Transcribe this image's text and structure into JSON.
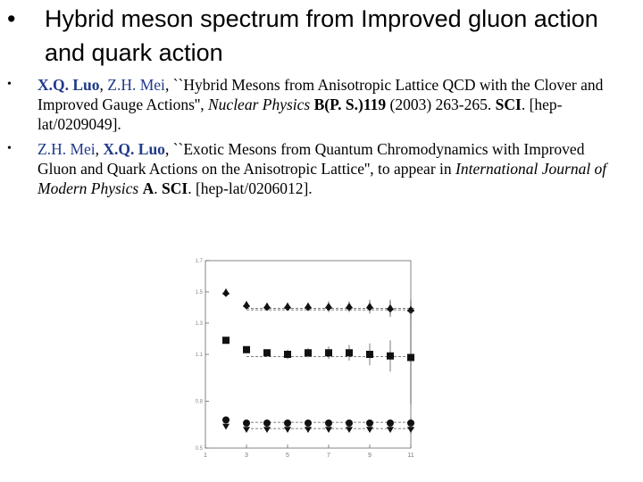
{
  "title": {
    "bullet": "•",
    "text": "Hybrid meson spectrum from Improved gluon action and quark action"
  },
  "references": [
    {
      "bullet": "•",
      "author1": "X.Q. Luo",
      "sep1": ", ",
      "author2": "Z.H. Mei",
      "text1": ", ``Hybrid Mesons from Anisotropic Lattice QCD with the Clover and Improved Gauge Actions'', ",
      "journal": "Nuclear Physics",
      "text2": " ",
      "volume": "B(P. S.)119",
      "text3": " (2003) 263-265. ",
      "sci": "SCI",
      "text4": ". [hep-lat/0209049]."
    },
    {
      "bullet": "•",
      "author1": "Z.H. Mei",
      "sep1": ", ",
      "author2": "X.Q. Luo",
      "text1": ", ``Exotic Mesons from Quantum Chromodynamics with Improved Gluon and Quark Actions on the Anisotropic Lattice'', to appear in ",
      "journal": "International Journal of Modern Physics",
      "text2": " ",
      "volume": "A",
      "text3": ". ",
      "sci": "SCI",
      "text4": ". [hep-lat/0206012]."
    }
  ],
  "chart_data": {
    "type": "scatter",
    "xlim": [
      1,
      11
    ],
    "ylim": [
      0.5,
      1.7
    ],
    "xticks": [
      "1",
      "3",
      "5",
      "7",
      "9",
      "11"
    ],
    "yticks": [
      "0.5",
      "0.8",
      "1.1",
      "1.3",
      "1.5",
      "1.7"
    ],
    "series": [
      {
        "marker": "triangle-up",
        "x": [
          2,
          3,
          4,
          5,
          6,
          7,
          8,
          9,
          10,
          11
        ],
        "y": [
          1.5,
          1.42,
          1.41,
          1.41,
          1.41,
          1.41,
          1.41,
          1.41,
          1.4,
          1.39
        ],
        "err": [
          0.02,
          0.02,
          0.02,
          0.02,
          0.02,
          0.03,
          0.03,
          0.04,
          0.05,
          0.06
        ]
      },
      {
        "marker": "diamond",
        "x": [
          2,
          3,
          4,
          5,
          6,
          7,
          8,
          9,
          10,
          11
        ],
        "y": [
          1.49,
          1.41,
          1.4,
          1.4,
          1.4,
          1.4,
          1.4,
          1.4,
          1.39,
          1.38
        ],
        "err": [
          0.02,
          0.02,
          0.02,
          0.02,
          0.02,
          0.03,
          0.03,
          0.04,
          0.05,
          0.06
        ]
      },
      {
        "marker": "square",
        "x": [
          2,
          3,
          4,
          5,
          6,
          7,
          8,
          9,
          10,
          11
        ],
        "y": [
          1.19,
          1.13,
          1.11,
          1.1,
          1.11,
          1.11,
          1.11,
          1.1,
          1.09,
          1.08
        ],
        "err": [
          0.02,
          0.02,
          0.02,
          0.03,
          0.03,
          0.04,
          0.05,
          0.07,
          0.1,
          0.3
        ]
      },
      {
        "marker": "circle",
        "x": [
          2,
          3,
          4,
          5,
          6,
          7,
          8,
          9,
          10,
          11
        ],
        "y": [
          0.68,
          0.66,
          0.66,
          0.66,
          0.66,
          0.66,
          0.66,
          0.66,
          0.66,
          0.66
        ],
        "err": [
          0.01,
          0.01,
          0.01,
          0.01,
          0.01,
          0.01,
          0.01,
          0.02,
          0.02,
          0.03
        ]
      },
      {
        "marker": "triangle-down",
        "x": [
          2,
          3,
          4,
          5,
          6,
          7,
          8,
          9,
          10,
          11
        ],
        "y": [
          0.64,
          0.62,
          0.62,
          0.62,
          0.62,
          0.62,
          0.62,
          0.62,
          0.62,
          0.62
        ],
        "err": [
          0.01,
          0.01,
          0.01,
          0.01,
          0.01,
          0.01,
          0.01,
          0.02,
          0.02,
          0.03
        ]
      }
    ]
  }
}
